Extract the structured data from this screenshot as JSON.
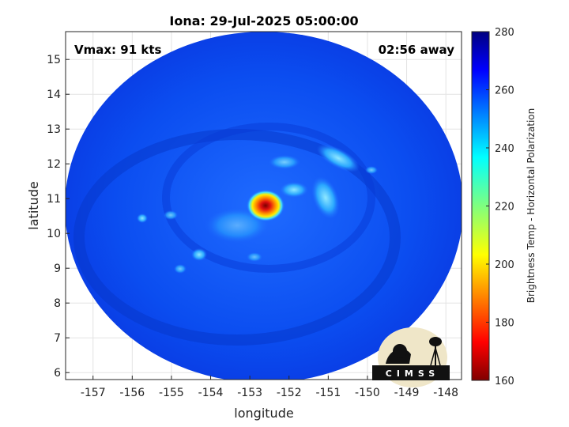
{
  "title": "Iona: 29-Jul-2025 05:00:00",
  "vmax_label": "Vmax: 91 kts",
  "time_label": "02:56 away",
  "map": {
    "xlabel": "longitude",
    "ylabel": "latitude",
    "xlim": [
      -157.7,
      -147.6
    ],
    "ylim": [
      5.8,
      15.8
    ],
    "xticks": [
      -157,
      -156,
      -155,
      -154,
      -153,
      -152,
      -151,
      -150,
      -149,
      -148
    ],
    "yticks": [
      6,
      7,
      8,
      9,
      10,
      11,
      12,
      13,
      14,
      15
    ],
    "grid": true,
    "storm_center": {
      "lon": -152.6,
      "lat": 10.75
    }
  },
  "colorbar": {
    "label": "Brightness Temp - Horizontal Polarization",
    "range": [
      160,
      280
    ],
    "ticks": [
      160,
      180,
      200,
      220,
      240,
      260,
      280
    ],
    "colormap": "jet"
  },
  "logo": {
    "text": "CIMSS"
  }
}
